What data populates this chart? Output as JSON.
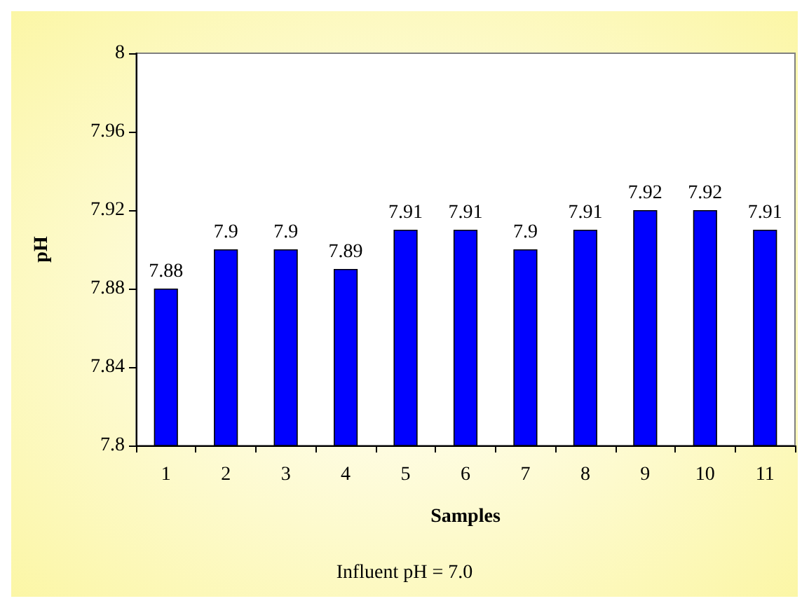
{
  "chart_data": {
    "type": "bar",
    "xlabel": "Samples",
    "ylabel": "pH",
    "categories": [
      "1",
      "2",
      "3",
      "4",
      "5",
      "6",
      "7",
      "8",
      "9",
      "10",
      "11"
    ],
    "values": [
      7.88,
      7.9,
      7.9,
      7.89,
      7.91,
      7.91,
      7.9,
      7.91,
      7.92,
      7.92,
      7.91
    ],
    "color": "#0000ff",
    "ylim": [
      7.8,
      8
    ],
    "yticks": [
      7.8,
      7.84,
      7.88,
      7.92,
      7.96,
      8
    ],
    "grid": false,
    "data_labels": true,
    "annotations": [
      "Influent pH = 7.0"
    ]
  }
}
